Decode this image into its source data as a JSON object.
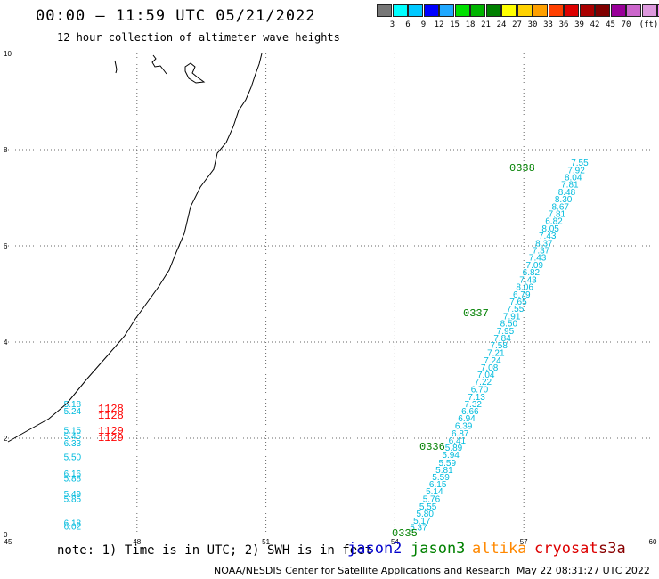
{
  "header": {
    "title": "00:00 – 11:59 UTC 05/21/2022",
    "subtitle": "12 hour collection of altimeter wave heights"
  },
  "color_scale": {
    "colors": [
      "#777777",
      "#00ffff",
      "#00c8ff",
      "#0000ff",
      "#20a8ff",
      "#00e000",
      "#00b400",
      "#008000",
      "#ffff00",
      "#ffd200",
      "#ffa000",
      "#ff4000",
      "#dd0000",
      "#aa0000",
      "#800000",
      "#990099",
      "#cc66cc",
      "#dd99dd",
      "#ff88ff",
      "#000000"
    ],
    "labels": [
      "3",
      "6",
      "9",
      "12",
      "15",
      "18",
      "21",
      "24",
      "27",
      "30",
      "33",
      "36",
      "39",
      "42",
      "45",
      "70",
      "(ft)"
    ]
  },
  "map": {
    "x_ticks": [
      "45",
      "48",
      "51",
      "54",
      "57",
      "60"
    ],
    "y_ticks": [
      "0",
      "2",
      "4",
      "6",
      "8",
      "10"
    ],
    "pass_labels": [
      "0335",
      "0336",
      "0337",
      "0338"
    ],
    "cryosat_times": [
      "1128",
      "1128",
      "1129",
      "1129"
    ],
    "colors": {
      "jason3_label": "#008000",
      "swh_value": "#00bbdd",
      "cryosat": "#ff0000",
      "coast": "#000000",
      "grid": "#666666"
    }
  },
  "chart_data": {
    "type": "scatter",
    "xlim": [
      45,
      60
    ],
    "ylim": [
      0,
      10
    ],
    "x_ticks": [
      45,
      48,
      51,
      54,
      57,
      60
    ],
    "y_ticks": [
      0,
      2,
      4,
      6,
      8,
      10
    ],
    "grid": true,
    "jason3_track_swh": [
      {
        "x": 54.55,
        "y": 0.08,
        "v": "5.37"
      },
      {
        "x": 54.63,
        "y": 0.22,
        "v": "5.17"
      },
      {
        "x": 54.7,
        "y": 0.37,
        "v": "5.80"
      },
      {
        "x": 54.77,
        "y": 0.52,
        "v": "5.55"
      },
      {
        "x": 54.85,
        "y": 0.68,
        "v": "5.76"
      },
      {
        "x": 54.92,
        "y": 0.83,
        "v": "5.14"
      },
      {
        "x": 55.0,
        "y": 0.98,
        "v": "6.15"
      },
      {
        "x": 55.07,
        "y": 1.13,
        "v": "5.59"
      },
      {
        "x": 55.15,
        "y": 1.28,
        "v": "5.81"
      },
      {
        "x": 55.22,
        "y": 1.43,
        "v": "5.59"
      },
      {
        "x": 55.3,
        "y": 1.59,
        "v": "5.94"
      },
      {
        "x": 55.37,
        "y": 1.74,
        "v": "5.89"
      },
      {
        "x": 55.45,
        "y": 1.89,
        "v": "6.41"
      },
      {
        "x": 55.52,
        "y": 2.04,
        "v": "6.87"
      },
      {
        "x": 55.6,
        "y": 2.19,
        "v": "6.39"
      },
      {
        "x": 55.67,
        "y": 2.35,
        "v": "6.94"
      },
      {
        "x": 55.75,
        "y": 2.5,
        "v": "6.66"
      },
      {
        "x": 55.82,
        "y": 2.65,
        "v": "7.32"
      },
      {
        "x": 55.9,
        "y": 2.8,
        "v": "7.13"
      },
      {
        "x": 55.97,
        "y": 2.95,
        "v": "6.70"
      },
      {
        "x": 56.05,
        "y": 3.11,
        "v": "7.22"
      },
      {
        "x": 56.12,
        "y": 3.26,
        "v": "7.04"
      },
      {
        "x": 56.2,
        "y": 3.41,
        "v": "7.08"
      },
      {
        "x": 56.27,
        "y": 3.56,
        "v": "7.24"
      },
      {
        "x": 56.35,
        "y": 3.71,
        "v": "7.21"
      },
      {
        "x": 56.42,
        "y": 3.87,
        "v": "7.58"
      },
      {
        "x": 56.5,
        "y": 4.02,
        "v": "7.84"
      },
      {
        "x": 56.57,
        "y": 4.17,
        "v": "7.95"
      },
      {
        "x": 56.65,
        "y": 4.32,
        "v": "8.50"
      },
      {
        "x": 56.72,
        "y": 4.47,
        "v": "7.91"
      },
      {
        "x": 56.8,
        "y": 4.63,
        "v": "7.55"
      },
      {
        "x": 56.87,
        "y": 4.78,
        "v": "7.65"
      },
      {
        "x": 56.95,
        "y": 4.93,
        "v": "6.79"
      },
      {
        "x": 57.02,
        "y": 5.08,
        "v": "8.06"
      },
      {
        "x": 57.1,
        "y": 5.23,
        "v": "7.43"
      },
      {
        "x": 57.17,
        "y": 5.39,
        "v": "6.82"
      },
      {
        "x": 57.25,
        "y": 5.54,
        "v": "7.09"
      },
      {
        "x": 57.32,
        "y": 5.69,
        "v": "7.43"
      },
      {
        "x": 57.4,
        "y": 5.84,
        "v": "7.37"
      },
      {
        "x": 57.47,
        "y": 5.99,
        "v": "8.37"
      },
      {
        "x": 57.55,
        "y": 6.15,
        "v": "7.43"
      },
      {
        "x": 57.62,
        "y": 6.3,
        "v": "8.05"
      },
      {
        "x": 57.7,
        "y": 6.45,
        "v": "6.82"
      },
      {
        "x": 57.77,
        "y": 6.6,
        "v": "7.81"
      },
      {
        "x": 57.85,
        "y": 6.75,
        "v": "8.67"
      },
      {
        "x": 57.92,
        "y": 6.91,
        "v": "8.30"
      },
      {
        "x": 58.0,
        "y": 7.06,
        "v": "8.48"
      },
      {
        "x": 58.07,
        "y": 7.21,
        "v": "7.81"
      },
      {
        "x": 58.15,
        "y": 7.36,
        "v": "8.04"
      },
      {
        "x": 58.22,
        "y": 7.51,
        "v": "7.92"
      },
      {
        "x": 58.3,
        "y": 7.67,
        "v": "7.55"
      }
    ],
    "cryosat_swh": [
      {
        "x": 46.5,
        "y": 2.65,
        "v": "5.18"
      },
      {
        "x": 46.5,
        "y": 2.5,
        "v": "5.24"
      },
      {
        "x": 46.5,
        "y": 2.1,
        "v": "5.15"
      },
      {
        "x": 46.5,
        "y": 1.98,
        "v": "5.45"
      },
      {
        "x": 46.5,
        "y": 1.83,
        "v": "6.33"
      },
      {
        "x": 46.5,
        "y": 1.55,
        "v": "5.50"
      },
      {
        "x": 46.5,
        "y": 1.2,
        "v": "6.16"
      },
      {
        "x": 46.5,
        "y": 1.1,
        "v": "5.88"
      },
      {
        "x": 46.5,
        "y": 0.78,
        "v": "5.49"
      },
      {
        "x": 46.5,
        "y": 0.68,
        "v": "5.85"
      },
      {
        "x": 46.5,
        "y": 0.18,
        "v": "6.18"
      },
      {
        "x": 46.5,
        "y": 0.1,
        "v": "6.02"
      }
    ]
  },
  "footer": {
    "note": "note: 1) Time is in UTC; 2) SWH is in feet",
    "satellites": [
      {
        "name": "jason2",
        "color": "#0000cc"
      },
      {
        "name": "jason3",
        "color": "#008000"
      },
      {
        "name": "altika",
        "color": "#ff8800"
      },
      {
        "name": "cryosat",
        "color": "#dd0000"
      },
      {
        "name": "s3a",
        "color": "#880000"
      }
    ],
    "credit": "NOAA/NESDIS Center for Satellite Applications and Research",
    "generated": "May 22 08:31:27 UTC 2022"
  }
}
